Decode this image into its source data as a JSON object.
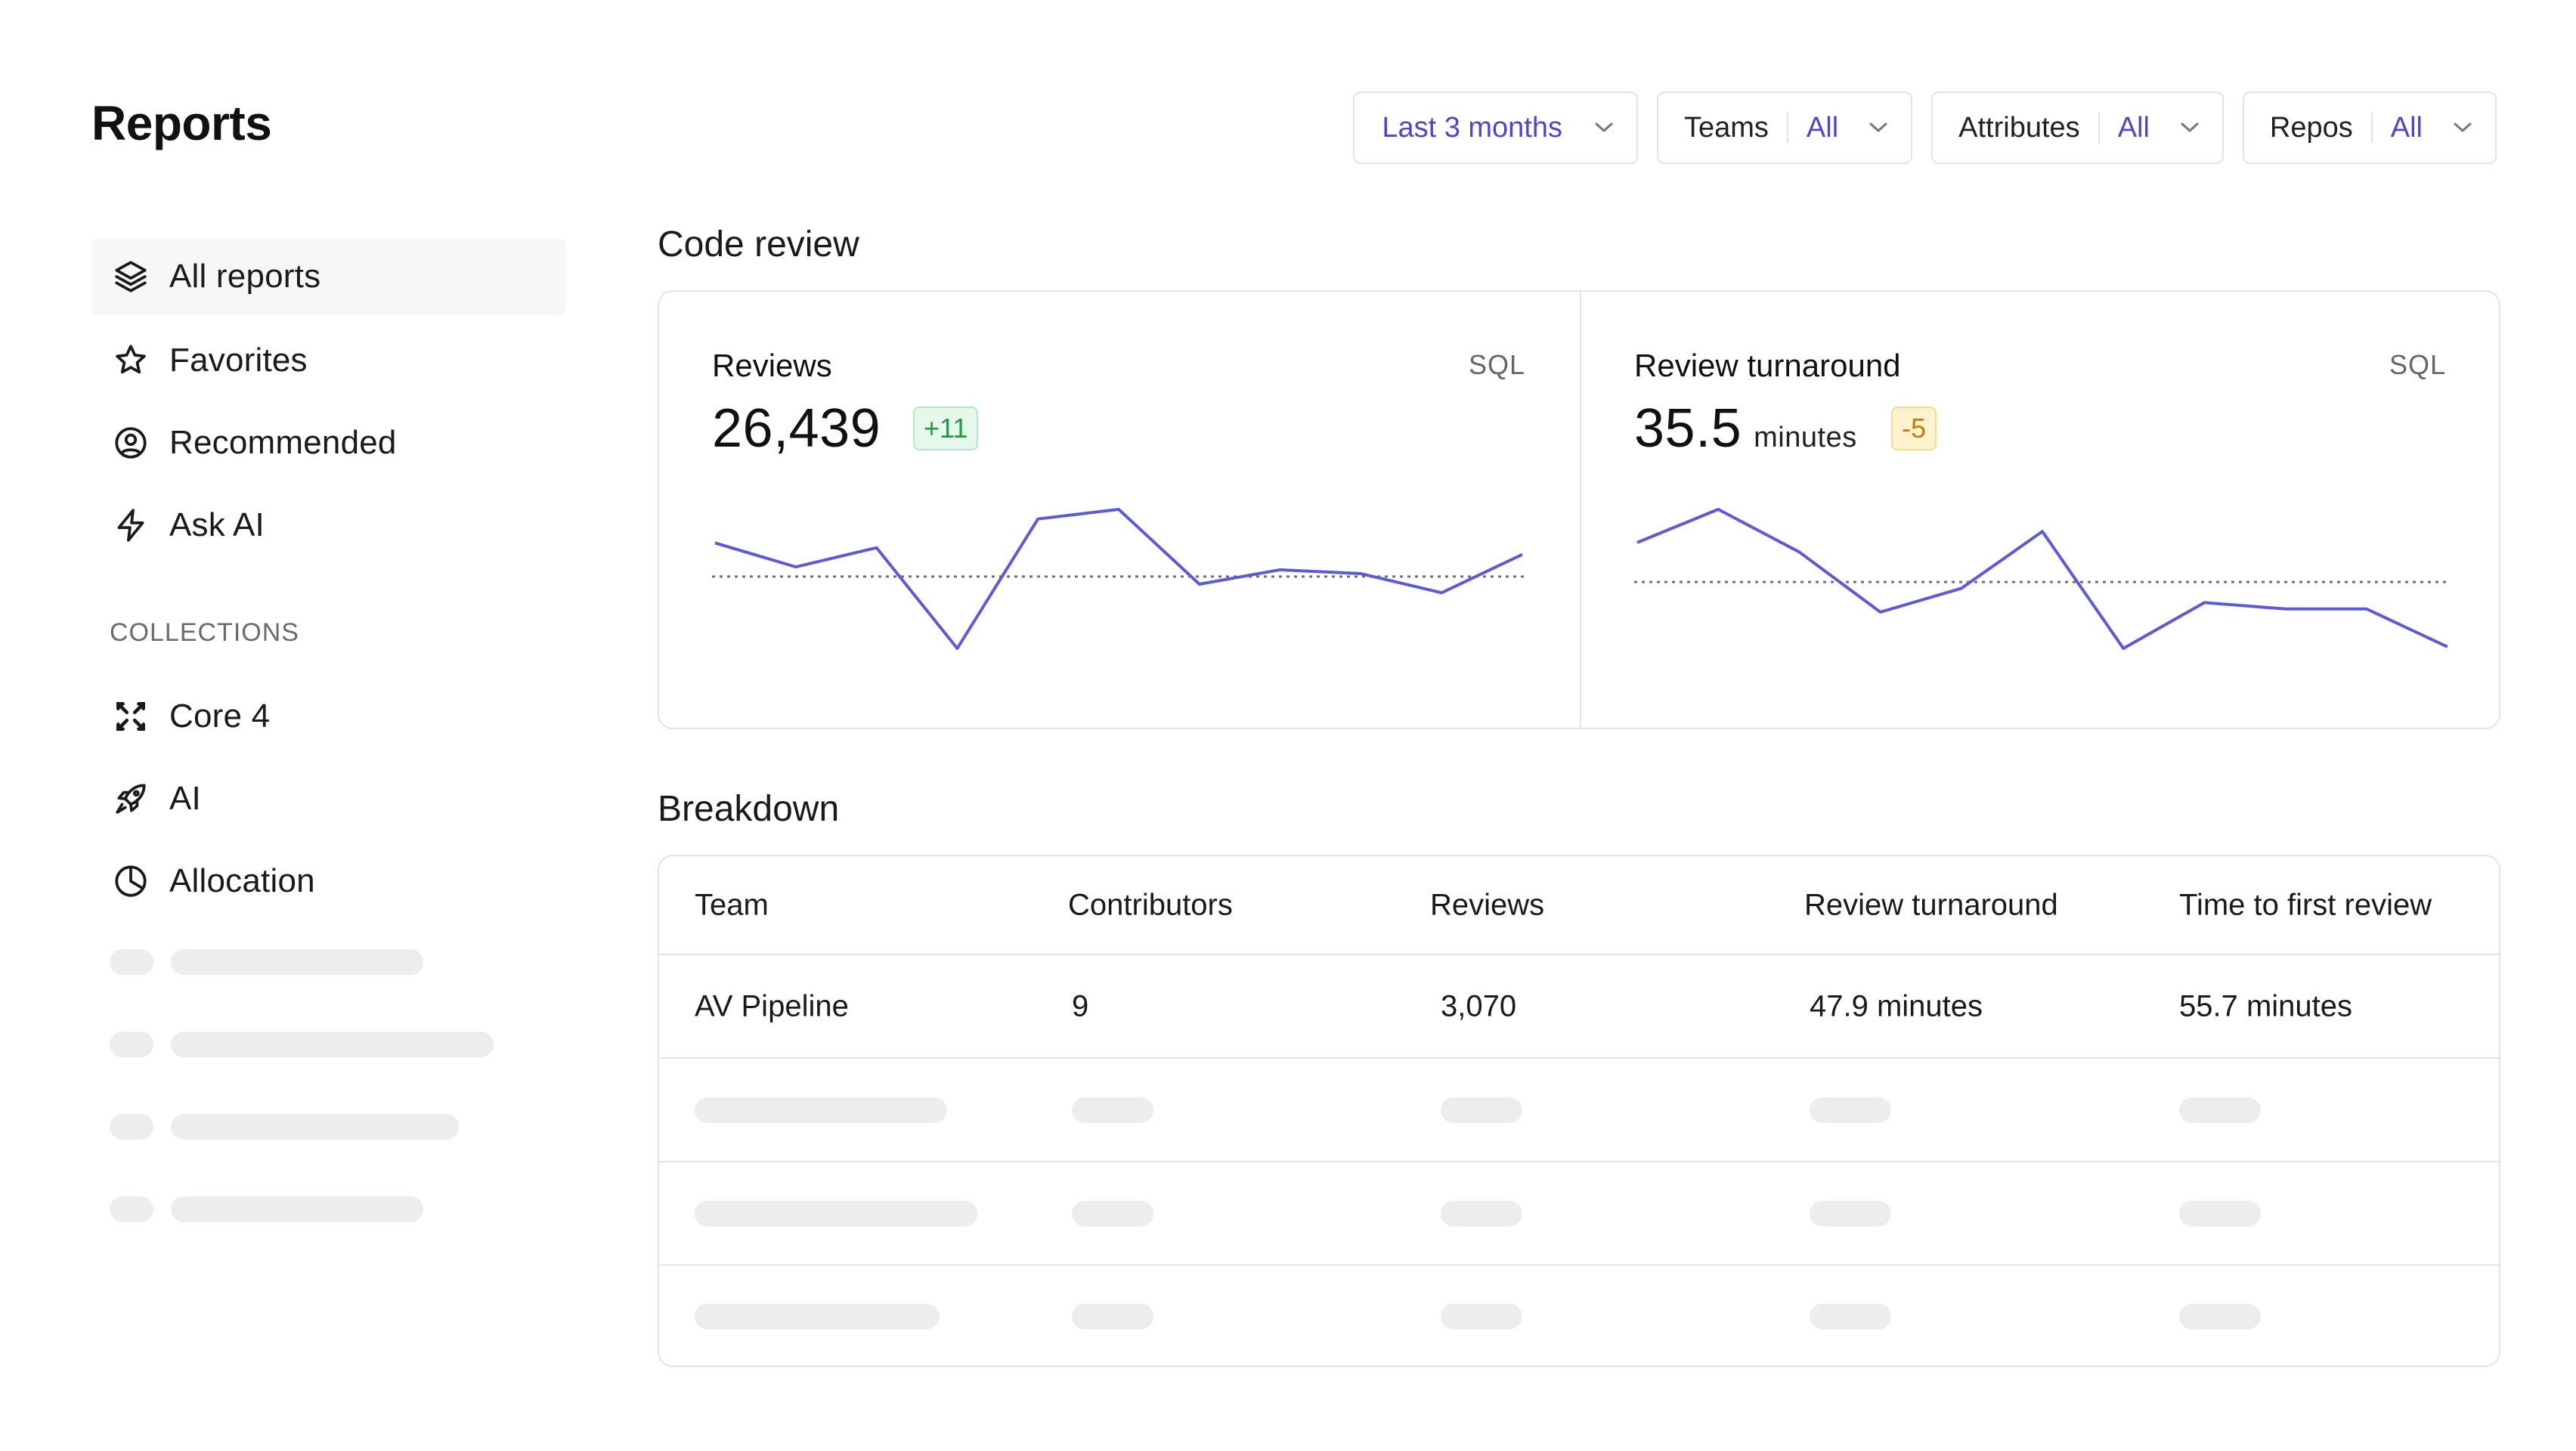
{
  "page": {
    "title": "Reports"
  },
  "filters": {
    "range": {
      "value": "Last 3 months"
    },
    "teams": {
      "label": "Teams",
      "value": "All"
    },
    "attributes": {
      "label": "Attributes",
      "value": "All"
    },
    "repos": {
      "label": "Repos",
      "value": "All"
    }
  },
  "sidebar": {
    "items": [
      {
        "label": "All reports",
        "icon": "layers-icon"
      },
      {
        "label": "Favorites",
        "icon": "star-icon"
      },
      {
        "label": "Recommended",
        "icon": "user-circle-icon"
      },
      {
        "label": "Ask AI",
        "icon": "bolt-icon"
      }
    ],
    "collections_label": "COLLECTIONS",
    "collections": [
      {
        "label": "Core 4",
        "icon": "core-x-icon"
      },
      {
        "label": "AI",
        "icon": "rocket-icon"
      },
      {
        "label": "Allocation",
        "icon": "pie-icon"
      }
    ]
  },
  "code_review": {
    "title": "Code review",
    "reviews": {
      "title": "Reviews",
      "tag": "SQL",
      "value": "26,439",
      "delta": "+11",
      "series": [
        6.5,
        4.0,
        6.0,
        -4.5,
        9.0,
        10.0,
        2.2,
        3.7,
        3.3,
        1.3,
        5.3
      ],
      "average": 3.0
    },
    "turnaround": {
      "title": "Review turnaround",
      "tag": "SQL",
      "value": "35.5",
      "unit": "minutes",
      "delta": "-5",
      "series": [
        7.2,
        9.3,
        6.6,
        2.8,
        4.3,
        7.9,
        0.5,
        3.4,
        3.0,
        3.0,
        0.6
      ],
      "average": 4.7
    }
  },
  "breakdown": {
    "title": "Breakdown",
    "columns": [
      "Team",
      "Contributors",
      "Reviews",
      "Review turnaround",
      "Time to first review"
    ],
    "rows": [
      {
        "team": "AV Pipeline",
        "contributors": "9",
        "reviews": "3,070",
        "turnaround": "47.9 minutes",
        "first_review": "55.7 minutes"
      }
    ]
  },
  "colors": {
    "accent": "#4f46c8",
    "chart_line": "#5b5bd6",
    "positive": "#1f9a45",
    "warning": "#c77a06"
  }
}
